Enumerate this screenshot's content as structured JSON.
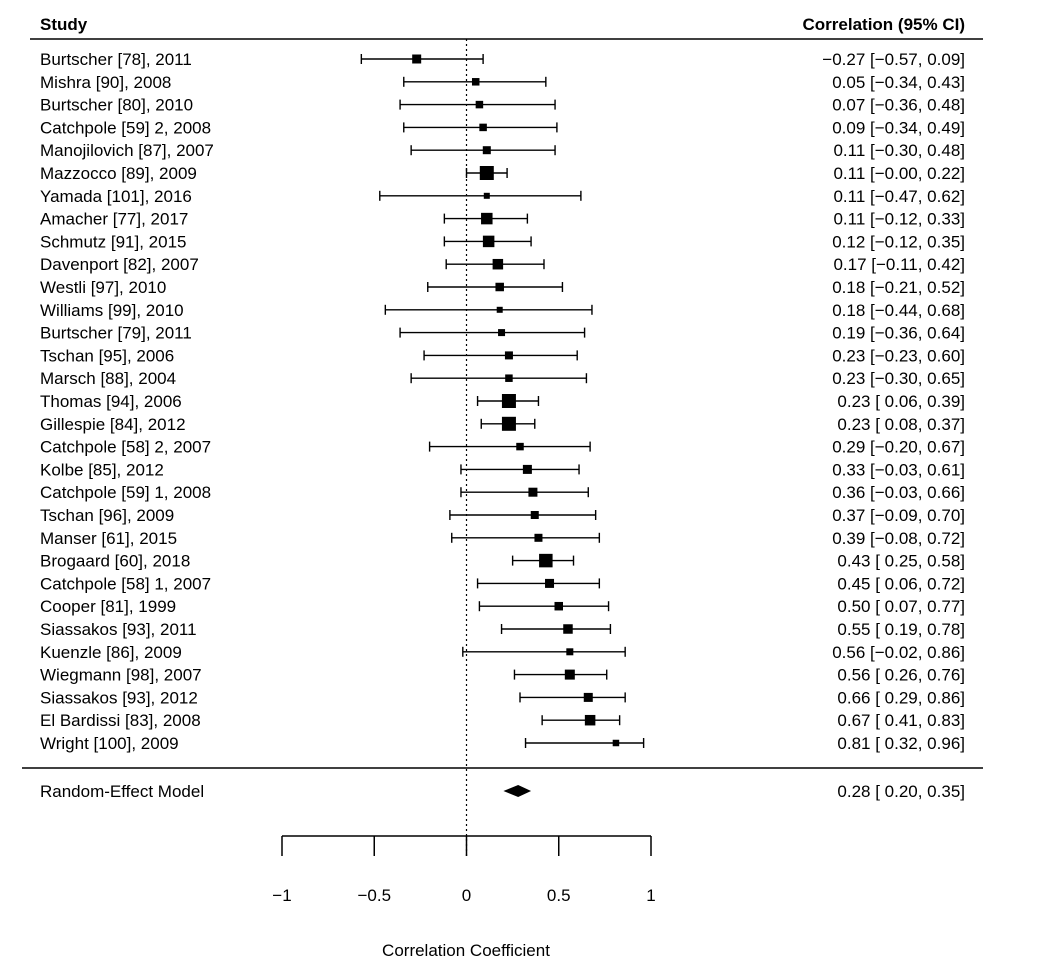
{
  "chart_data": {
    "type": "forest",
    "column_headers": {
      "study": "Study",
      "estimate": "Correlation (95% CI)"
    },
    "xlabel": "Correlation Coefficient",
    "xlim": [
      -1,
      1
    ],
    "ticks": [
      -1,
      -0.5,
      0,
      0.5,
      1
    ],
    "tick_labels": [
      "−1",
      "−0.5",
      "0",
      "0.5",
      "1"
    ],
    "reference_line": 0,
    "studies": [
      {
        "label": "Burtscher [78], 2011",
        "r": -0.27,
        "lo": -0.57,
        "hi": 0.09,
        "ci_text": "−0.27 [−0.57, 0.09]",
        "weight": 0.5
      },
      {
        "label": "Mishra [90], 2008",
        "r": 0.05,
        "lo": -0.34,
        "hi": 0.43,
        "ci_text": "0.05 [−0.34, 0.43]",
        "weight": 0.35
      },
      {
        "label": "Burtscher [80], 2010",
        "r": 0.07,
        "lo": -0.36,
        "hi": 0.48,
        "ci_text": "0.07 [−0.36, 0.48]",
        "weight": 0.35
      },
      {
        "label": "Catchpole [59] 2, 2008",
        "r": 0.09,
        "lo": -0.34,
        "hi": 0.49,
        "ci_text": "0.09 [−0.34, 0.49]",
        "weight": 0.35
      },
      {
        "label": "Manojilovich [87], 2007",
        "r": 0.11,
        "lo": -0.3,
        "hi": 0.48,
        "ci_text": "0.11 [−0.30, 0.48]",
        "weight": 0.4
      },
      {
        "label": "Mazzocco [89], 2009",
        "r": 0.11,
        "lo": 0.0,
        "hi": 0.22,
        "ci_text": "0.11 [−0.00, 0.22]",
        "weight": 1.0
      },
      {
        "label": "Yamada [101], 2016",
        "r": 0.11,
        "lo": -0.47,
        "hi": 0.62,
        "ci_text": "0.11 [−0.47, 0.62]",
        "weight": 0.2
      },
      {
        "label": "Amacher [77], 2017",
        "r": 0.11,
        "lo": -0.12,
        "hi": 0.33,
        "ci_text": "0.11 [−0.12, 0.33]",
        "weight": 0.75
      },
      {
        "label": "Schmutz [91], 2015",
        "r": 0.12,
        "lo": -0.12,
        "hi": 0.35,
        "ci_text": "0.12 [−0.12, 0.35]",
        "weight": 0.75
      },
      {
        "label": "Davenport [82], 2007",
        "r": 0.17,
        "lo": -0.11,
        "hi": 0.42,
        "ci_text": "0.17 [−0.11, 0.42]",
        "weight": 0.65
      },
      {
        "label": "Westli [97], 2010",
        "r": 0.18,
        "lo": -0.21,
        "hi": 0.52,
        "ci_text": "0.18 [−0.21, 0.52]",
        "weight": 0.45
      },
      {
        "label": "Williams [99], 2010",
        "r": 0.18,
        "lo": -0.44,
        "hi": 0.68,
        "ci_text": "0.18 [−0.44, 0.68]",
        "weight": 0.2
      },
      {
        "label": "Burtscher [79], 2011",
        "r": 0.19,
        "lo": -0.36,
        "hi": 0.64,
        "ci_text": "0.19 [−0.36, 0.64]",
        "weight": 0.3
      },
      {
        "label": "Tschan [95], 2006",
        "r": 0.23,
        "lo": -0.23,
        "hi": 0.6,
        "ci_text": "0.23 [−0.23, 0.60]",
        "weight": 0.4
      },
      {
        "label": "Marsch [88], 2004",
        "r": 0.23,
        "lo": -0.3,
        "hi": 0.65,
        "ci_text": "0.23 [−0.30, 0.65]",
        "weight": 0.35
      },
      {
        "label": "Thomas [94], 2006",
        "r": 0.23,
        "lo": 0.06,
        "hi": 0.39,
        "ci_text": "0.23 [ 0.06, 0.39]",
        "weight": 1.0
      },
      {
        "label": "Gillespie [84], 2012",
        "r": 0.23,
        "lo": 0.08,
        "hi": 0.37,
        "ci_text": "0.23 [ 0.08, 0.37]",
        "weight": 1.0
      },
      {
        "label": "Catchpole [58] 2, 2007",
        "r": 0.29,
        "lo": -0.2,
        "hi": 0.67,
        "ci_text": "0.29 [−0.20, 0.67]",
        "weight": 0.35
      },
      {
        "label": "Kolbe [85], 2012",
        "r": 0.33,
        "lo": -0.03,
        "hi": 0.61,
        "ci_text": "0.33 [−0.03, 0.61]",
        "weight": 0.5
      },
      {
        "label": "Catchpole [59] 1, 2008",
        "r": 0.36,
        "lo": -0.03,
        "hi": 0.66,
        "ci_text": "0.36 [−0.03, 0.66]",
        "weight": 0.5
      },
      {
        "label": "Tschan [96], 2009",
        "r": 0.37,
        "lo": -0.09,
        "hi": 0.7,
        "ci_text": "0.37 [−0.09, 0.70]",
        "weight": 0.4
      },
      {
        "label": "Manser [61], 2015",
        "r": 0.39,
        "lo": -0.08,
        "hi": 0.72,
        "ci_text": "0.39 [−0.08, 0.72]",
        "weight": 0.4
      },
      {
        "label": "Brogaard [60], 2018",
        "r": 0.43,
        "lo": 0.25,
        "hi": 0.58,
        "ci_text": "0.43 [ 0.25, 0.58]",
        "weight": 0.95
      },
      {
        "label": "Catchpole [58] 1, 2007",
        "r": 0.45,
        "lo": 0.06,
        "hi": 0.72,
        "ci_text": "0.45 [ 0.06, 0.72]",
        "weight": 0.5
      },
      {
        "label": "Cooper [81], 1999",
        "r": 0.5,
        "lo": 0.07,
        "hi": 0.77,
        "ci_text": "0.50 [ 0.07, 0.77]",
        "weight": 0.45
      },
      {
        "label": "Siassakos [93], 2011",
        "r": 0.55,
        "lo": 0.19,
        "hi": 0.78,
        "ci_text": "0.55 [ 0.19, 0.78]",
        "weight": 0.55
      },
      {
        "label": "Kuenzle [86], 2009",
        "r": 0.56,
        "lo": -0.02,
        "hi": 0.86,
        "ci_text": "0.56 [−0.02, 0.86]",
        "weight": 0.3
      },
      {
        "label": "Wiegmann [98], 2007",
        "r": 0.56,
        "lo": 0.26,
        "hi": 0.76,
        "ci_text": "0.56 [ 0.26, 0.76]",
        "weight": 0.6
      },
      {
        "label": "Siassakos [93], 2012",
        "r": 0.66,
        "lo": 0.29,
        "hi": 0.86,
        "ci_text": "0.66 [ 0.29, 0.86]",
        "weight": 0.5
      },
      {
        "label": "El Bardissi [83], 2008",
        "r": 0.67,
        "lo": 0.41,
        "hi": 0.83,
        "ci_text": "0.67 [ 0.41, 0.83]",
        "weight": 0.65
      },
      {
        "label": "Wright [100], 2009",
        "r": 0.81,
        "lo": 0.32,
        "hi": 0.96,
        "ci_text": "0.81 [ 0.32, 0.96]",
        "weight": 0.25
      }
    ],
    "summary": {
      "label": "Random-Effect Model",
      "r": 0.28,
      "lo": 0.2,
      "hi": 0.35,
      "ci_text": "0.28 [ 0.20, 0.35]"
    }
  }
}
